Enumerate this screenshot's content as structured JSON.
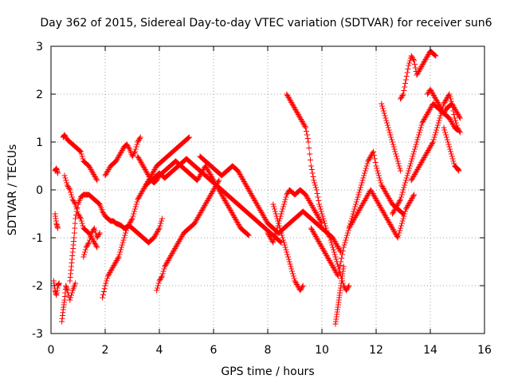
{
  "chart_data": {
    "type": "scatter",
    "title": "Day 362 of 2015, Sidereal Day-to-day VTEC variation (SDTVAR) for receiver sun6",
    "xlabel": "GPS time / hours",
    "ylabel": "SDTVAR / TECUs",
    "xlim": [
      0,
      16
    ],
    "ylim": [
      -3,
      3
    ],
    "xticks": [
      "0",
      "2",
      "4",
      "6",
      "8",
      "10",
      "12",
      "14",
      "16"
    ],
    "yticks": [
      "-3",
      "-2",
      "-1",
      "0",
      "1",
      "2",
      "3"
    ],
    "grid": true,
    "marker": "plus",
    "color": "#ff0000",
    "series": [
      {
        "x": [
          0.1,
          0.15,
          0.2,
          0.25,
          0.3
        ],
        "y": [
          -1.9,
          -2.1,
          -2.2,
          -2.0,
          -1.95
        ]
      },
      {
        "x": [
          0.15,
          0.2,
          0.25
        ],
        "y": [
          0.4,
          0.45,
          0.35
        ]
      },
      {
        "x": [
          0.15,
          0.2,
          0.25
        ],
        "y": [
          -0.5,
          -0.7,
          -0.8
        ]
      },
      {
        "x": [
          0.4,
          0.45,
          0.5,
          0.55,
          0.6,
          0.7,
          0.8,
          0.9
        ],
        "y": [
          -2.75,
          -2.5,
          -2.3,
          -2.0,
          -2.1,
          -2.3,
          -2.1,
          -1.95
        ]
      },
      {
        "x": [
          0.45,
          0.5,
          0.6,
          0.7,
          0.8,
          0.9,
          1.0,
          1.1,
          1.2,
          1.3,
          1.4,
          1.5,
          1.6,
          1.7
        ],
        "y": [
          1.1,
          1.15,
          1.05,
          1.0,
          0.95,
          0.9,
          0.85,
          0.8,
          0.6,
          0.55,
          0.5,
          0.4,
          0.3,
          0.2
        ]
      },
      {
        "x": [
          0.5,
          0.6,
          0.7,
          0.8,
          0.9,
          1.0,
          1.1,
          1.2,
          1.3,
          1.4,
          1.5,
          1.6,
          1.7
        ],
        "y": [
          0.3,
          0.1,
          0.0,
          -0.2,
          -0.3,
          -0.5,
          -0.6,
          -0.8,
          -0.85,
          -0.9,
          -1.0,
          -1.1,
          -1.2
        ]
      },
      {
        "x": [
          0.7,
          0.75,
          0.8,
          0.85,
          0.9,
          1.0,
          1.1,
          1.2,
          1.3,
          1.4,
          1.5,
          1.6,
          1.7,
          1.8
        ],
        "y": [
          -1.9,
          -1.6,
          -1.3,
          -1.0,
          -0.6,
          -0.3,
          -0.15,
          -0.1,
          -0.1,
          -0.1,
          -0.15,
          -0.2,
          -0.25,
          -0.3
        ]
      },
      {
        "x": [
          1.2,
          1.3,
          1.4,
          1.5,
          1.6,
          1.7,
          1.8
        ],
        "y": [
          -1.4,
          -1.2,
          -1.1,
          -0.9,
          -0.8,
          -1.0,
          -0.9
        ]
      },
      {
        "x": [
          1.8,
          1.9,
          2.0,
          2.1,
          2.2,
          2.3,
          2.4,
          2.5,
          2.6,
          2.7,
          2.8,
          2.9,
          3.0,
          3.1,
          3.2,
          3.3,
          3.4,
          3.5,
          3.6,
          3.7,
          3.8,
          3.9,
          4.0,
          4.1
        ],
        "y": [
          -0.3,
          -0.45,
          -0.55,
          -0.6,
          -0.65,
          -0.65,
          -0.7,
          -0.72,
          -0.75,
          -0.8,
          -0.78,
          -0.75,
          -0.8,
          -0.85,
          -0.9,
          -0.95,
          -1.0,
          -1.05,
          -1.1,
          -1.05,
          -1.0,
          -0.9,
          -0.8,
          -0.6
        ]
      },
      {
        "x": [
          1.9,
          2.0,
          2.1,
          2.2,
          2.3,
          2.4,
          2.5,
          2.6,
          2.7,
          2.8,
          2.9,
          3.0,
          3.1,
          3.2,
          3.3,
          3.4,
          3.5,
          3.6,
          3.7,
          3.8,
          3.9,
          4.0,
          4.1,
          4.2,
          4.3,
          4.4,
          4.5,
          4.6,
          4.7,
          4.8,
          4.9,
          5.0,
          5.1
        ],
        "y": [
          -2.25,
          -2.0,
          -1.8,
          -1.7,
          -1.6,
          -1.5,
          -1.4,
          -1.2,
          -1.0,
          -0.8,
          -0.7,
          -0.6,
          -0.4,
          -0.2,
          -0.1,
          0.0,
          0.1,
          0.2,
          0.3,
          0.4,
          0.5,
          0.55,
          0.6,
          0.65,
          0.7,
          0.75,
          0.8,
          0.85,
          0.9,
          0.95,
          1.0,
          1.05,
          1.1
        ]
      },
      {
        "x": [
          2.0,
          2.1,
          2.2,
          2.3,
          2.4,
          2.5,
          2.6,
          2.7,
          2.8,
          2.9,
          3.0,
          3.1,
          3.2,
          3.3
        ],
        "y": [
          0.3,
          0.4,
          0.5,
          0.55,
          0.6,
          0.7,
          0.8,
          0.9,
          0.95,
          0.85,
          0.7,
          0.8,
          1.0,
          1.1
        ]
      },
      {
        "x": [
          3.2,
          3.3,
          3.4,
          3.5,
          3.6,
          3.7,
          3.8,
          3.9,
          4.0,
          4.1,
          4.2,
          4.3,
          4.4,
          4.5,
          4.6,
          4.7,
          4.8,
          4.9,
          5.0,
          5.1,
          5.2,
          5.3,
          5.4,
          5.5,
          5.6,
          5.7,
          5.8,
          5.9,
          6.0,
          6.1,
          6.2,
          6.3,
          6.4,
          6.5,
          6.6,
          6.7,
          6.8,
          6.9,
          7.0,
          7.1,
          7.2,
          7.3
        ],
        "y": [
          0.7,
          0.6,
          0.5,
          0.4,
          0.3,
          0.2,
          0.15,
          0.2,
          0.3,
          0.35,
          0.4,
          0.45,
          0.5,
          0.55,
          0.6,
          0.55,
          0.5,
          0.45,
          0.4,
          0.35,
          0.3,
          0.25,
          0.2,
          0.3,
          0.4,
          0.5,
          0.4,
          0.3,
          0.2,
          0.1,
          0.0,
          -0.1,
          -0.2,
          -0.3,
          -0.4,
          -0.5,
          -0.6,
          -0.7,
          -0.8,
          -0.85,
          -0.9,
          -0.95
        ]
      },
      {
        "x": [
          3.9,
          4.0,
          4.1,
          4.2,
          4.3,
          4.4,
          4.5,
          4.6,
          4.7,
          4.8,
          4.9,
          5.0,
          5.1,
          5.2,
          5.3,
          5.4,
          5.5,
          5.6,
          5.7,
          5.8,
          5.9,
          6.0,
          6.1,
          6.2
        ],
        "y": [
          -2.1,
          -1.9,
          -1.8,
          -1.6,
          -1.5,
          -1.4,
          -1.3,
          -1.2,
          -1.1,
          -1.0,
          -0.9,
          -0.85,
          -0.8,
          -0.75,
          -0.7,
          -0.6,
          -0.5,
          -0.4,
          -0.3,
          -0.2,
          -0.1,
          0.0,
          0.1,
          0.2
        ]
      },
      {
        "x": [
          3.5,
          3.6,
          3.7,
          3.8,
          3.9,
          4.0,
          4.1,
          4.2,
          4.3,
          4.4,
          4.5,
          4.6,
          4.7,
          4.8,
          4.9,
          5.0,
          5.1,
          5.2,
          5.3,
          5.4,
          5.5,
          5.6,
          5.7,
          5.8,
          5.9,
          6.0,
          6.1,
          6.2,
          6.3,
          6.4,
          6.5,
          6.6,
          6.7,
          6.8,
          6.9,
          7.0,
          7.1,
          7.2,
          7.3,
          7.4,
          7.5,
          7.6,
          7.7,
          7.8,
          7.9,
          8.0,
          8.1,
          8.2,
          8.3,
          8.4,
          8.5
        ],
        "y": [
          0.1,
          0.15,
          0.2,
          0.25,
          0.3,
          0.35,
          0.3,
          0.25,
          0.3,
          0.35,
          0.4,
          0.45,
          0.5,
          0.55,
          0.6,
          0.65,
          0.6,
          0.55,
          0.5,
          0.45,
          0.4,
          0.35,
          0.3,
          0.25,
          0.2,
          0.15,
          0.1,
          0.05,
          0.0,
          -0.05,
          -0.1,
          -0.15,
          -0.2,
          -0.25,
          -0.3,
          -0.35,
          -0.4,
          -0.45,
          -0.5,
          -0.55,
          -0.6,
          -0.65,
          -0.7,
          -0.75,
          -0.8,
          -0.85,
          -0.9,
          -0.95,
          -1.0,
          -1.05,
          -1.1
        ]
      },
      {
        "x": [
          5.5,
          5.6,
          5.7,
          5.8,
          5.9,
          6.0,
          6.1,
          6.2,
          6.3,
          6.4,
          6.5,
          6.6,
          6.7,
          6.8,
          6.9,
          7.0,
          7.1,
          7.2,
          7.3,
          7.4,
          7.5,
          7.6,
          7.7,
          7.8,
          7.9,
          8.0,
          8.1,
          8.2,
          8.3,
          8.4,
          8.5,
          8.6,
          8.7,
          8.8,
          8.9,
          9.0,
          9.1,
          9.2,
          9.3,
          9.4,
          9.5,
          9.6,
          9.7,
          9.8,
          9.9,
          10.0,
          10.1,
          10.2,
          10.3,
          10.4,
          10.5,
          10.6,
          10.7
        ],
        "y": [
          0.7,
          0.65,
          0.6,
          0.55,
          0.5,
          0.45,
          0.4,
          0.35,
          0.3,
          0.35,
          0.4,
          0.45,
          0.5,
          0.45,
          0.4,
          0.3,
          0.2,
          0.1,
          0.0,
          -0.1,
          -0.2,
          -0.3,
          -0.4,
          -0.5,
          -0.6,
          -0.7,
          -0.75,
          -0.8,
          -0.85,
          -0.9,
          -0.85,
          -0.8,
          -0.75,
          -0.7,
          -0.65,
          -0.6,
          -0.55,
          -0.5,
          -0.45,
          -0.5,
          -0.55,
          -0.6,
          -0.65,
          -0.7,
          -0.75,
          -0.8,
          -0.85,
          -0.9,
          -0.95,
          -1.0,
          -1.1,
          -1.2,
          -1.3
        ]
      },
      {
        "x": [
          8.2,
          8.3,
          8.4,
          8.5,
          8.6,
          8.7,
          8.8,
          8.9,
          9.0,
          9.1,
          9.2,
          9.3
        ],
        "y": [
          -0.3,
          -0.5,
          -0.7,
          -0.9,
          -1.1,
          -1.3,
          -1.5,
          -1.7,
          -1.9,
          -2.0,
          -2.1,
          -2.0
        ]
      },
      {
        "x": [
          8.7,
          8.8,
          8.9,
          9.0,
          9.1,
          9.2,
          9.3,
          9.4,
          9.5,
          9.6,
          9.7,
          9.8,
          9.9,
          10.0,
          10.1,
          10.2,
          10.3,
          10.4,
          10.5,
          10.6,
          10.7,
          10.8,
          10.9,
          11.0
        ],
        "y": [
          2.0,
          1.9,
          1.8,
          1.7,
          1.6,
          1.5,
          1.4,
          1.3,
          1.0,
          0.5,
          0.2,
          0.0,
          -0.3,
          -0.5,
          -0.7,
          -0.9,
          -1.0,
          -1.2,
          -1.4,
          -1.6,
          -1.8,
          -2.0,
          -2.1,
          -2.0
        ]
      },
      {
        "x": [
          8.0,
          8.1,
          8.2,
          8.3,
          8.4,
          8.5,
          8.6,
          8.7,
          8.8,
          8.9,
          9.0,
          9.1,
          9.2,
          9.3,
          9.4,
          9.5,
          9.6,
          9.7,
          9.8,
          9.9,
          10.0
        ],
        "y": [
          -0.9,
          -1.0,
          -1.1,
          -0.9,
          -0.7,
          -0.5,
          -0.3,
          -0.1,
          0.0,
          -0.05,
          -0.1,
          -0.05,
          0.0,
          -0.05,
          -0.1,
          -0.2,
          -0.3,
          -0.4,
          -0.5,
          -0.6,
          -0.7
        ]
      },
      {
        "x": [
          9.6,
          9.7,
          9.8,
          9.9,
          10.0,
          10.1,
          10.2,
          10.3,
          10.4,
          10.5,
          10.6,
          10.7,
          10.8,
          10.9,
          11.0,
          11.1,
          11.2,
          11.3,
          11.4,
          11.5,
          11.6,
          11.7,
          11.8,
          11.9,
          12.0,
          12.1,
          12.2,
          12.3,
          12.4,
          12.5,
          12.6,
          12.7,
          12.8,
          12.9,
          13.0
        ],
        "y": [
          -0.8,
          -0.9,
          -1.0,
          -1.1,
          -1.2,
          -1.3,
          -1.4,
          -1.5,
          -1.6,
          -1.7,
          -1.8,
          -1.5,
          -1.2,
          -1.0,
          -0.8,
          -0.6,
          -0.4,
          -0.2,
          0.0,
          0.2,
          0.4,
          0.6,
          0.7,
          0.8,
          0.5,
          0.3,
          0.1,
          0.0,
          -0.1,
          -0.2,
          -0.3,
          -0.35,
          -0.4,
          -0.45,
          -0.5
        ]
      },
      {
        "x": [
          10.5,
          10.55,
          10.6,
          10.65,
          10.7,
          10.75,
          10.8
        ],
        "y": [
          -2.8,
          -2.6,
          -2.4,
          -2.2,
          -2.0,
          -1.8,
          -1.6
        ]
      },
      {
        "x": [
          11.0,
          11.1,
          11.2,
          11.3,
          11.4,
          11.5,
          11.6,
          11.7,
          11.8,
          11.9,
          12.0,
          12.1,
          12.2,
          12.3,
          12.4,
          12.5,
          12.6,
          12.7,
          12.8,
          12.9,
          13.0,
          13.1,
          13.2,
          13.3,
          13.4
        ],
        "y": [
          -0.8,
          -0.7,
          -0.6,
          -0.5,
          -0.4,
          -0.3,
          -0.2,
          -0.1,
          0.0,
          -0.1,
          -0.2,
          -0.3,
          -0.4,
          -0.5,
          -0.6,
          -0.7,
          -0.8,
          -0.9,
          -1.0,
          -0.8,
          -0.6,
          -0.4,
          -0.3,
          -0.2,
          -0.1
        ]
      },
      {
        "x": [
          12.2,
          12.3,
          12.4,
          12.5,
          12.6,
          12.7,
          12.8,
          12.9
        ],
        "y": [
          1.8,
          1.6,
          1.4,
          1.2,
          1.0,
          0.8,
          0.6,
          0.4
        ]
      },
      {
        "x": [
          12.6,
          12.7,
          12.8,
          12.9,
          13.0,
          13.1,
          13.2,
          13.3,
          13.4,
          13.5,
          13.6,
          13.7,
          13.8,
          13.9,
          14.0,
          14.1,
          14.2,
          14.3,
          14.4,
          14.5,
          14.6,
          14.7,
          14.8,
          14.9,
          15.0,
          15.1
        ],
        "y": [
          -0.5,
          -0.4,
          -0.3,
          -0.2,
          0.0,
          0.2,
          0.4,
          0.6,
          0.8,
          1.0,
          1.2,
          1.4,
          1.5,
          1.6,
          1.7,
          1.8,
          1.75,
          1.7,
          1.65,
          1.6,
          1.7,
          1.75,
          1.8,
          1.7,
          1.6,
          1.5
        ]
      },
      {
        "x": [
          12.9,
          13.0,
          13.1,
          13.2,
          13.3,
          13.4,
          13.5,
          13.6,
          13.7,
          13.8,
          13.9,
          14.0,
          14.1,
          14.2
        ],
        "y": [
          1.9,
          2.0,
          2.3,
          2.6,
          2.8,
          2.7,
          2.4,
          2.5,
          2.6,
          2.7,
          2.8,
          2.9,
          2.85,
          2.8
        ]
      },
      {
        "x": [
          13.3,
          13.4,
          13.5,
          13.6,
          13.7,
          13.8,
          13.9,
          14.0,
          14.1,
          14.2,
          14.3,
          14.4,
          14.5,
          14.6,
          14.7,
          14.8,
          14.9,
          15.0,
          15.1
        ],
        "y": [
          0.2,
          0.3,
          0.4,
          0.5,
          0.6,
          0.7,
          0.8,
          0.9,
          1.0,
          1.2,
          1.4,
          1.6,
          1.8,
          1.9,
          2.0,
          1.8,
          1.5,
          1.3,
          1.2
        ]
      },
      {
        "x": [
          14.5,
          14.6,
          14.7,
          14.8,
          14.9,
          15.0,
          15.05
        ],
        "y": [
          1.3,
          1.1,
          0.9,
          0.7,
          0.5,
          0.45,
          0.4
        ]
      },
      {
        "x": [
          13.9,
          14.0,
          14.1,
          14.2,
          14.3,
          14.4,
          14.5,
          14.6,
          14.7,
          14.8,
          14.9,
          15.0
        ],
        "y": [
          2.0,
          2.1,
          2.0,
          1.9,
          1.8,
          1.7,
          1.6,
          1.55,
          1.5,
          1.4,
          1.3,
          1.25
        ]
      }
    ]
  }
}
